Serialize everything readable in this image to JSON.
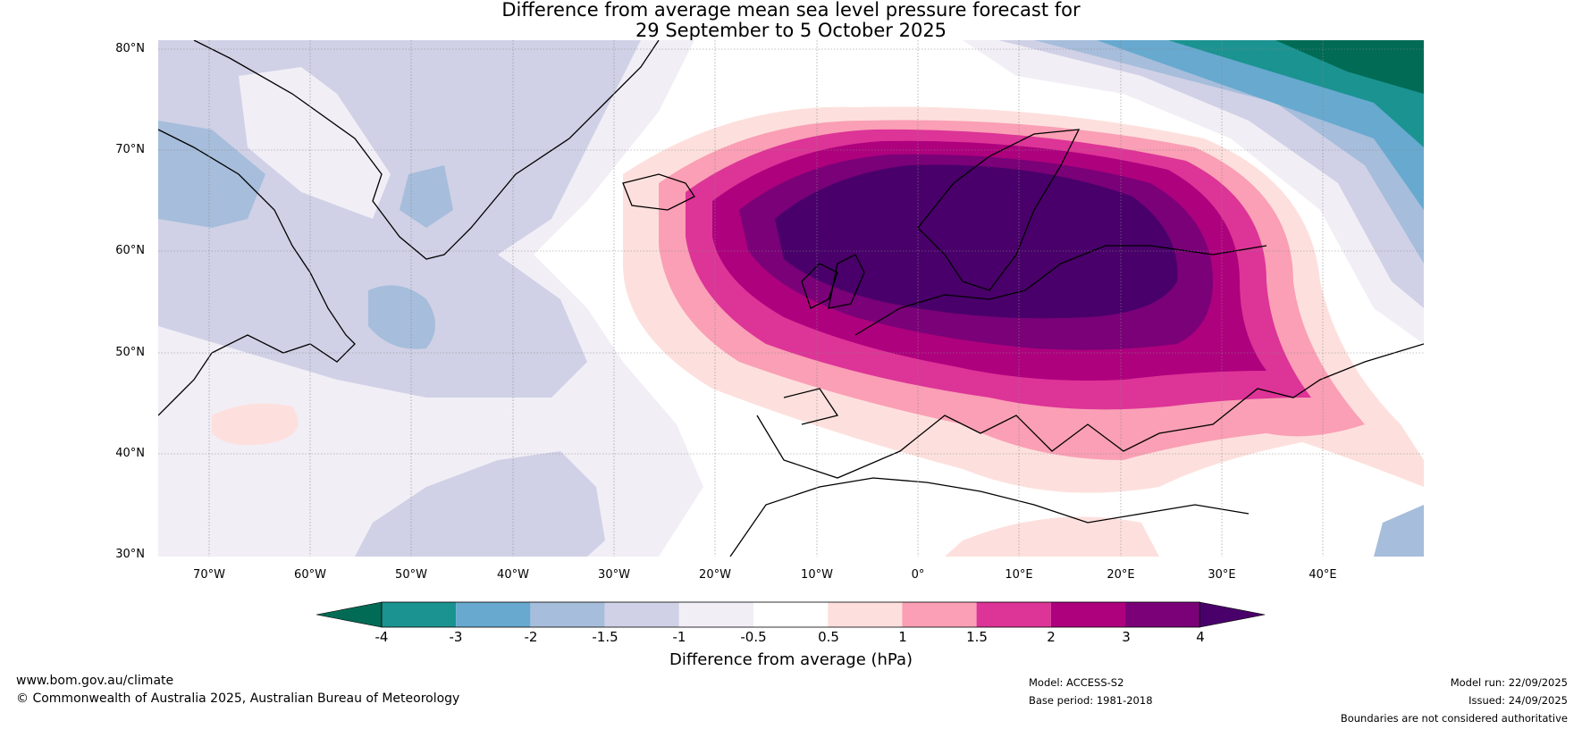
{
  "title_line1": "Difference from average mean sea level pressure forecast for",
  "title_line2": "29 September to 5 October 2025",
  "lat_labels": [
    "80°N",
    "70°N",
    "60°N",
    "50°N",
    "40°N",
    "30°N"
  ],
  "lon_labels": [
    "70°W",
    "60°W",
    "50°W",
    "40°W",
    "30°W",
    "20°W",
    "10°W",
    "0°",
    "10°E",
    "20°E",
    "30°E",
    "40°E"
  ],
  "colorbar": {
    "ticks": [
      "-4",
      "-3",
      "-2",
      "-1.5",
      "-1",
      "-0.5",
      "0.5",
      "1",
      "1.5",
      "2",
      "3",
      "4"
    ],
    "colors": [
      "#016b55",
      "#1b9391",
      "#67a9cf",
      "#a6bddb",
      "#d0d1e6",
      "#f1eef6",
      "#ffffff",
      "#fde0dd",
      "#fa9fb5",
      "#dd3497",
      "#ae017e",
      "#7a0177",
      "#49006a"
    ],
    "title": "Difference from average (hPa)"
  },
  "footer": {
    "url": "www.bom.gov.au/climate",
    "copyright": "© Commonwealth of Australia 2025, Australian Bureau of Meteorology",
    "model": "Model: ACCESS-S2",
    "base_period": "Base period: 1981-2018",
    "model_run": "Model run: 22/09/2025",
    "issued": "Issued: 24/09/2025",
    "disclaimer": "Boundaries are not considered authoritative"
  }
}
